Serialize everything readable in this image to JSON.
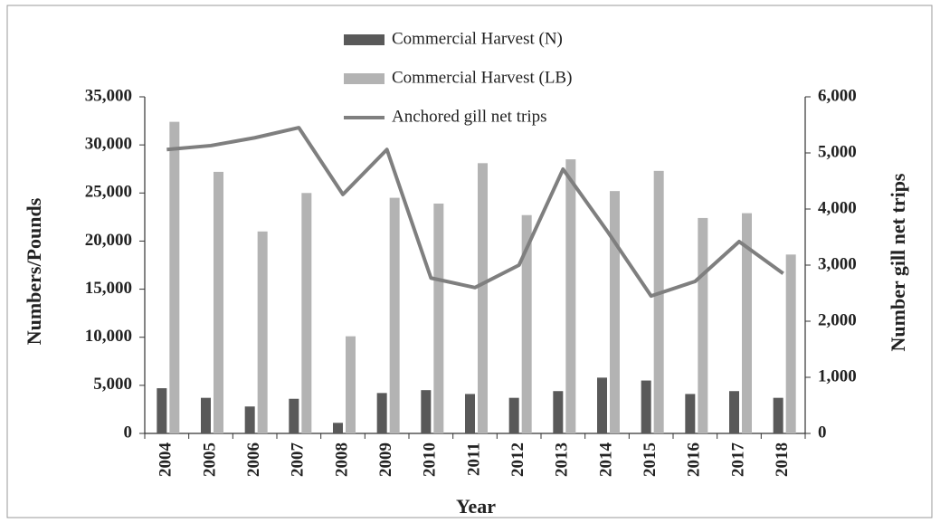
{
  "chart_data": {
    "type": "bar",
    "xlabel": "Year",
    "ylabel": "Numbers/Pounds",
    "y2label": "Number gill net trips",
    "categories": [
      "2004",
      "2005",
      "2006",
      "2007",
      "2008",
      "2009",
      "2010",
      "2011",
      "2012",
      "2013",
      "2014",
      "2015",
      "2016",
      "2017",
      "2018"
    ],
    "series": [
      {
        "name": "Commercial Harvest (N)",
        "color": "#595959",
        "type": "bar",
        "values": [
          4700,
          3700,
          2800,
          3600,
          1100,
          4200,
          4500,
          4100,
          3700,
          4400,
          5800,
          5500,
          4100,
          4400,
          3700
        ]
      },
      {
        "name": "Commercial Harvest (LB)",
        "color": "#b3b3b3",
        "type": "bar",
        "values": [
          32400,
          27200,
          21000,
          25000,
          10100,
          24500,
          23900,
          28100,
          22700,
          28500,
          25200,
          27300,
          22400,
          22900,
          18600
        ]
      },
      {
        "name": "Anchored gill net trips",
        "color": "#7f7f7f",
        "type": "line",
        "axis": "y2",
        "values": [
          5060,
          5130,
          5270,
          5450,
          4260,
          5060,
          2770,
          2600,
          3000,
          4710,
          3610,
          2450,
          2710,
          3420,
          2850
        ]
      }
    ],
    "ylim": [
      0,
      35000
    ],
    "yticks": [
      0,
      {
        "value": 5000,
        "label": "5,000"
      },
      {
        "value": 10000,
        "label": "10,000"
      },
      {
        "value": 15000,
        "label": "15,000"
      },
      {
        "value": 20000,
        "label": "20,000"
      },
      {
        "value": 25000,
        "label": "25,000"
      },
      {
        "value": 30000,
        "label": "30,000"
      },
      {
        "value": 35000,
        "label": "35,000"
      }
    ],
    "y2lim": [
      0,
      6000
    ],
    "y2ticks": [
      0,
      {
        "value": 1000,
        "label": "1,000"
      },
      {
        "value": 2000,
        "label": "2,000"
      },
      {
        "value": 3000,
        "label": "3,000"
      },
      {
        "value": 4000,
        "label": "4,000"
      },
      {
        "value": 5000,
        "label": "5,000"
      },
      {
        "value": 6000,
        "label": "6,000"
      }
    ],
    "legend": "top"
  }
}
